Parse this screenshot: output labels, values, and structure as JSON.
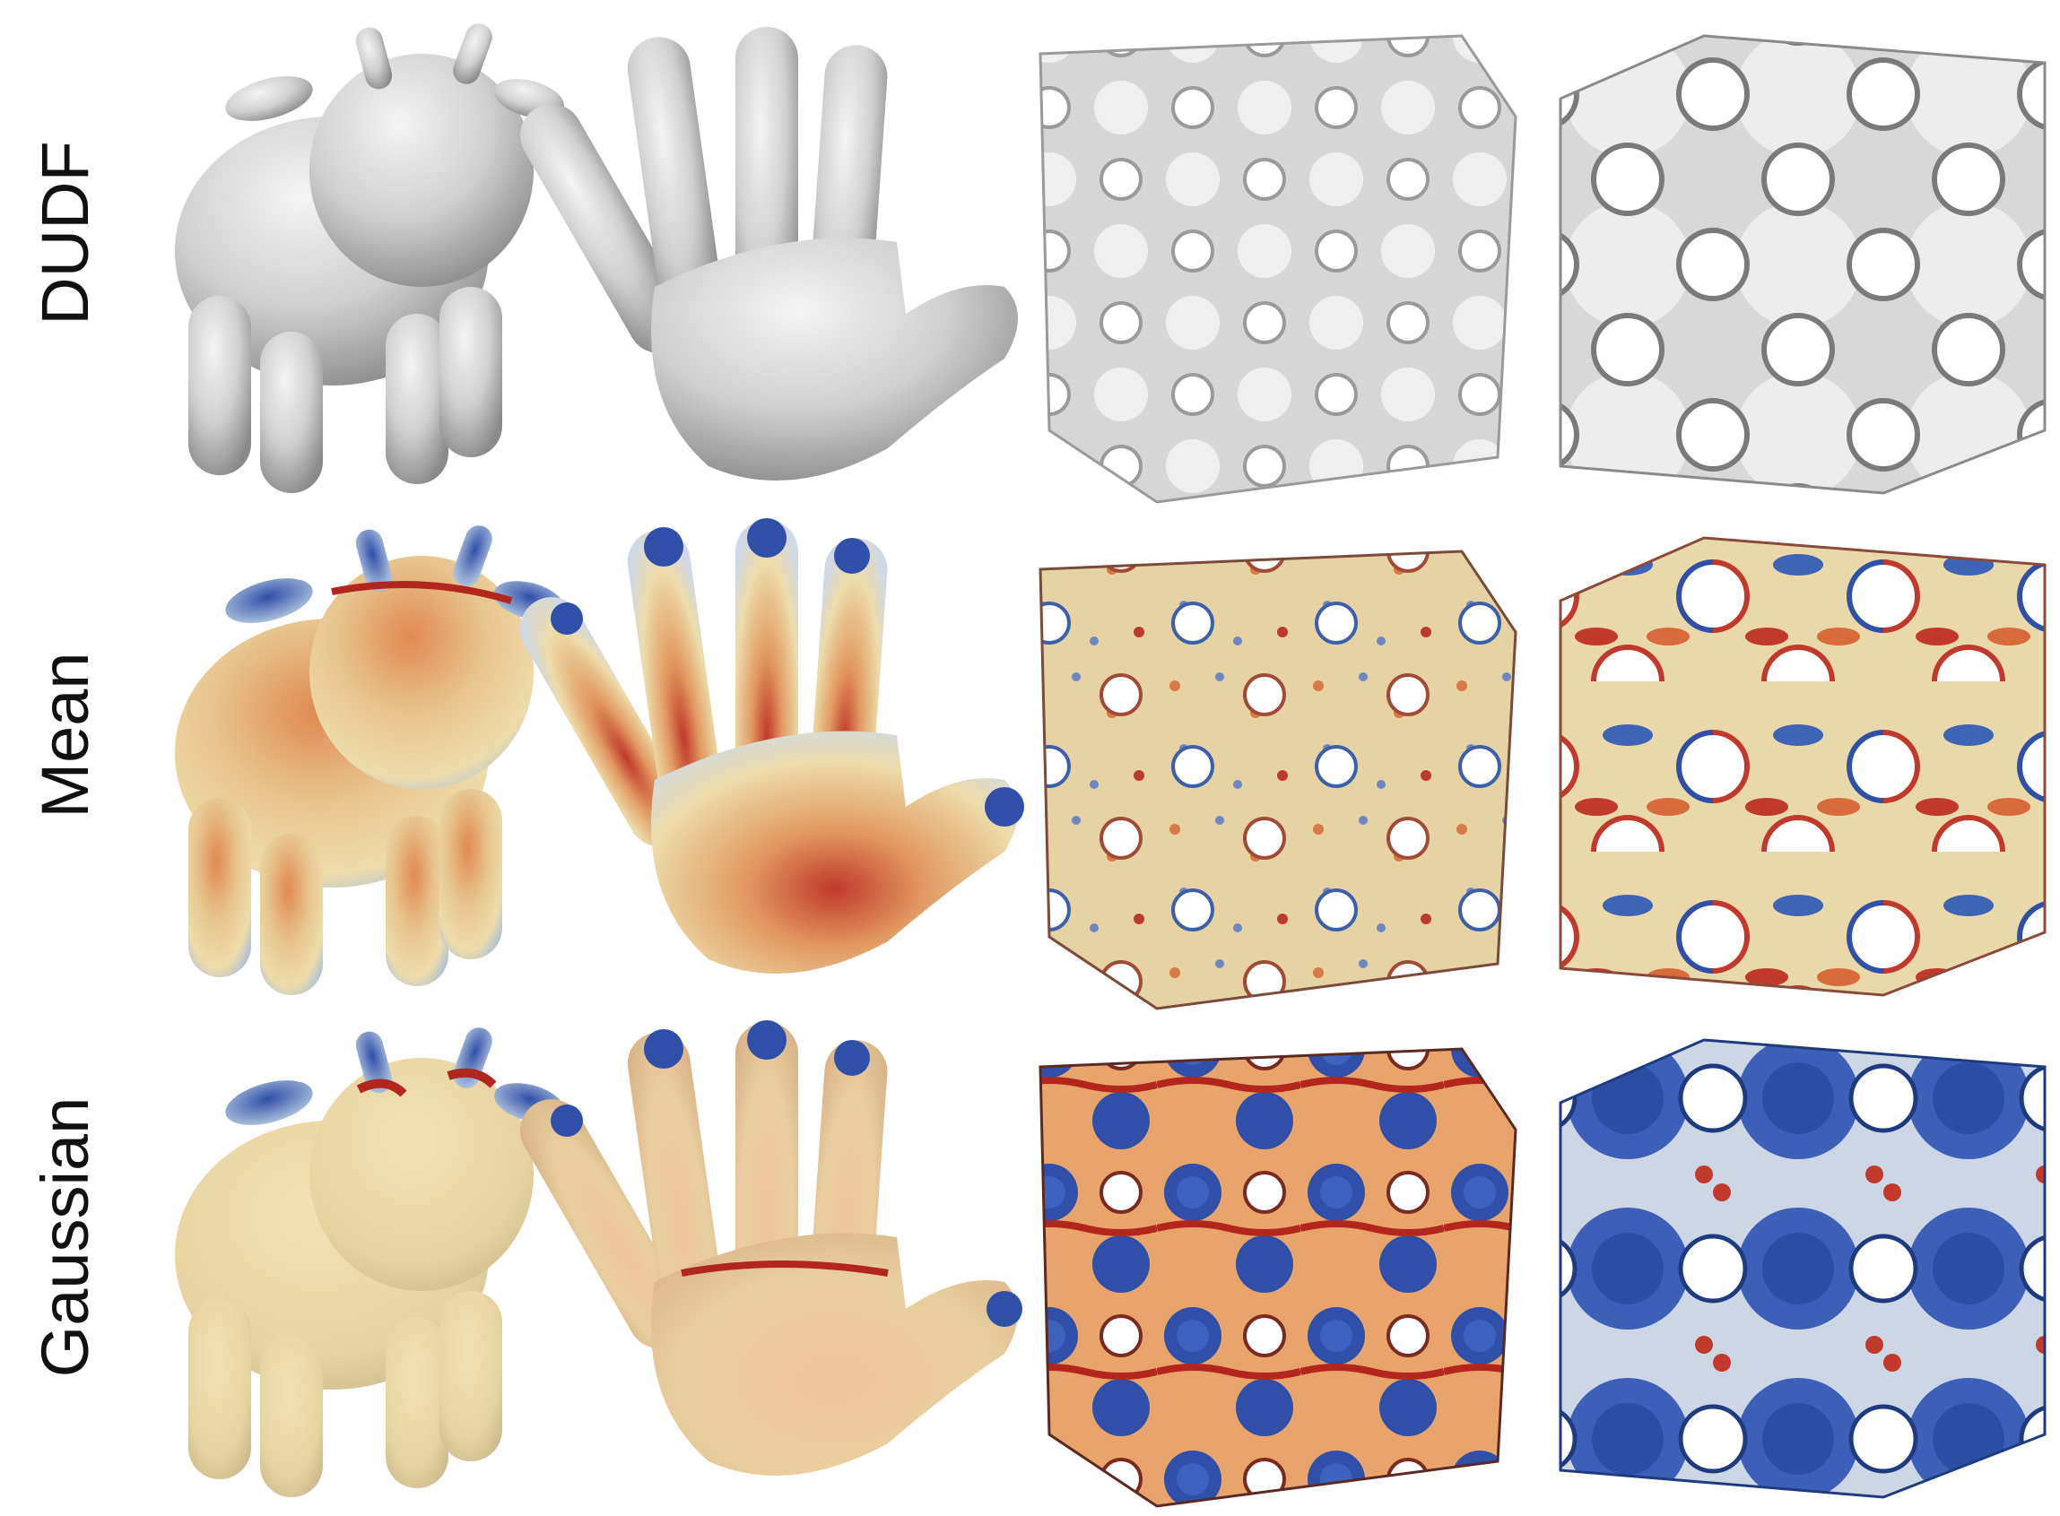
{
  "rows": [
    {
      "label": "DUDF",
      "shading": "gray"
    },
    {
      "label": "Mean",
      "shading": "mean-curvature-colormap"
    },
    {
      "label": "Gaussian",
      "shading": "gaussian-curvature-colormap"
    }
  ],
  "columns": [
    "cow",
    "hand",
    "gyroid-lattice",
    "schwarz-lattice"
  ],
  "colors": {
    "gray_light": "#e2e2e2",
    "gray_mid": "#bdbdbd",
    "gray_dark": "#8a8a8a",
    "cream": "#ecdcaa",
    "orange": "#e3935a",
    "red": "#b3261e",
    "blue": "#2f4fa8",
    "light_blue": "#a9bedb"
  }
}
